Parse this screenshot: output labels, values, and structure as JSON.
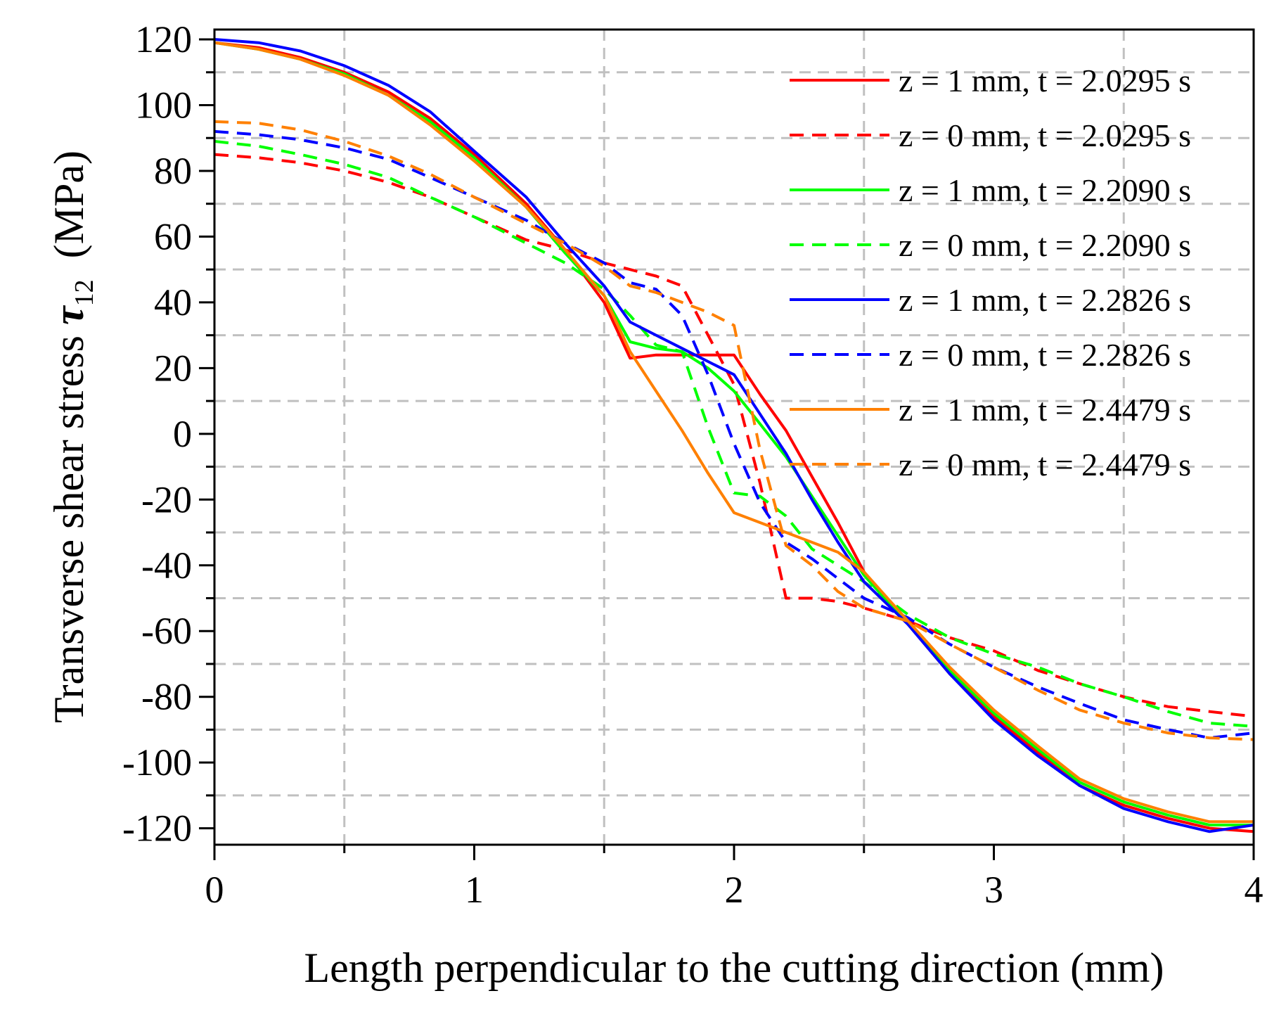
{
  "chart_data": {
    "type": "line",
    "title": "",
    "xlabel": "Length perpendicular to the cutting direction (mm)",
    "ylabel_prefix": "Transverse shear stress ",
    "ylabel_symbol": "τ",
    "ylabel_subscript": "12",
    "ylabel_unit": "(MPa)",
    "xlim": [
      0,
      4
    ],
    "ylim": [
      -125,
      123
    ],
    "x_ticks": [
      "0",
      "1",
      "2",
      "3",
      "4"
    ],
    "y_ticks": [
      "120",
      "100",
      "80",
      "60",
      "40",
      "20",
      "0",
      "-20",
      "-40",
      "-60",
      "-80",
      "-100",
      "-120"
    ],
    "grid": true,
    "legend_position": "top-right",
    "series": [
      {
        "name": "z = 1 mm, t = 2.0295 s",
        "color": "#ff0000",
        "dash": "solid",
        "points": [
          [
            0,
            119
          ],
          [
            0.17,
            117.5
          ],
          [
            0.33,
            114.5
          ],
          [
            0.5,
            110
          ],
          [
            0.67,
            104
          ],
          [
            0.83,
            96
          ],
          [
            1,
            85
          ],
          [
            1.2,
            70
          ],
          [
            1.35,
            56
          ],
          [
            1.5,
            40
          ],
          [
            1.6,
            23
          ],
          [
            1.7,
            24
          ],
          [
            1.8,
            24
          ],
          [
            1.9,
            24
          ],
          [
            2.0,
            24
          ],
          [
            2.1,
            12
          ],
          [
            2.2,
            1
          ],
          [
            2.3,
            -13
          ],
          [
            2.4,
            -27
          ],
          [
            2.5,
            -42
          ],
          [
            2.67,
            -58
          ],
          [
            2.83,
            -73
          ],
          [
            3.0,
            -86
          ],
          [
            3.17,
            -97
          ],
          [
            3.33,
            -107
          ],
          [
            3.5,
            -113
          ],
          [
            3.67,
            -117
          ],
          [
            3.83,
            -120
          ],
          [
            4.0,
            -121
          ]
        ]
      },
      {
        "name": "z = 0 mm, t = 2.0295 s",
        "color": "#ff0000",
        "dash": "dashed",
        "points": [
          [
            0,
            85
          ],
          [
            0.17,
            84
          ],
          [
            0.33,
            82.5
          ],
          [
            0.5,
            80
          ],
          [
            0.67,
            76.5
          ],
          [
            0.83,
            72
          ],
          [
            1,
            66
          ],
          [
            1.2,
            59
          ],
          [
            1.35,
            56
          ],
          [
            1.5,
            52
          ],
          [
            1.6,
            50
          ],
          [
            1.7,
            48
          ],
          [
            1.8,
            45
          ],
          [
            1.9,
            30
          ],
          [
            2.0,
            15
          ],
          [
            2.1,
            -15
          ],
          [
            2.2,
            -50
          ],
          [
            2.3,
            -50
          ],
          [
            2.4,
            -51
          ],
          [
            2.5,
            -53
          ],
          [
            2.67,
            -57
          ],
          [
            2.83,
            -62
          ],
          [
            3.0,
            -66
          ],
          [
            3.17,
            -72
          ],
          [
            3.33,
            -76
          ],
          [
            3.5,
            -80
          ],
          [
            3.67,
            -83
          ],
          [
            3.83,
            -84.5
          ],
          [
            4.0,
            -86
          ]
        ]
      },
      {
        "name": "z = 1 mm, t = 2.2090 s",
        "color": "#00ff00",
        "dash": "solid",
        "points": [
          [
            0,
            119
          ],
          [
            0.17,
            117
          ],
          [
            0.33,
            114
          ],
          [
            0.5,
            109.5
          ],
          [
            0.67,
            103
          ],
          [
            0.83,
            95
          ],
          [
            1,
            84
          ],
          [
            1.2,
            69
          ],
          [
            1.35,
            55
          ],
          [
            1.5,
            42
          ],
          [
            1.6,
            28
          ],
          [
            1.7,
            26
          ],
          [
            1.8,
            25
          ],
          [
            1.9,
            20
          ],
          [
            2.0,
            13
          ],
          [
            2.1,
            3
          ],
          [
            2.2,
            -7
          ],
          [
            2.3,
            -19
          ],
          [
            2.4,
            -31
          ],
          [
            2.5,
            -43
          ],
          [
            2.67,
            -58
          ],
          [
            2.83,
            -72
          ],
          [
            3.0,
            -85
          ],
          [
            3.17,
            -96
          ],
          [
            3.33,
            -106
          ],
          [
            3.5,
            -112
          ],
          [
            3.67,
            -116
          ],
          [
            3.83,
            -119
          ],
          [
            4.0,
            -119
          ]
        ]
      },
      {
        "name": "z = 0 mm, t = 2.2090 s",
        "color": "#00ff00",
        "dash": "dashed",
        "points": [
          [
            0,
            89
          ],
          [
            0.17,
            87.5
          ],
          [
            0.33,
            85
          ],
          [
            0.5,
            82
          ],
          [
            0.67,
            78
          ],
          [
            0.83,
            72
          ],
          [
            1,
            66
          ],
          [
            1.2,
            58
          ],
          [
            1.35,
            52
          ],
          [
            1.5,
            44
          ],
          [
            1.6,
            36
          ],
          [
            1.7,
            27
          ],
          [
            1.8,
            25
          ],
          [
            1.9,
            2
          ],
          [
            2.0,
            -18
          ],
          [
            2.1,
            -19
          ],
          [
            2.2,
            -25
          ],
          [
            2.3,
            -35
          ],
          [
            2.4,
            -40
          ],
          [
            2.5,
            -45
          ],
          [
            2.67,
            -55
          ],
          [
            2.83,
            -62
          ],
          [
            3.0,
            -67
          ],
          [
            3.17,
            -71
          ],
          [
            3.33,
            -76
          ],
          [
            3.5,
            -80
          ],
          [
            3.67,
            -84.5
          ],
          [
            3.83,
            -88
          ],
          [
            4.0,
            -89
          ]
        ]
      },
      {
        "name": "z = 1 mm, t = 2.2826 s",
        "color": "#0000ff",
        "dash": "solid",
        "points": [
          [
            0,
            120
          ],
          [
            0.17,
            119
          ],
          [
            0.33,
            116.5
          ],
          [
            0.5,
            112
          ],
          [
            0.67,
            106
          ],
          [
            0.83,
            98
          ],
          [
            1,
            86
          ],
          [
            1.2,
            72
          ],
          [
            1.35,
            58
          ],
          [
            1.5,
            45
          ],
          [
            1.6,
            34
          ],
          [
            1.7,
            30
          ],
          [
            1.8,
            26
          ],
          [
            1.9,
            22
          ],
          [
            2.0,
            18
          ],
          [
            2.1,
            6
          ],
          [
            2.2,
            -6
          ],
          [
            2.3,
            -20
          ],
          [
            2.4,
            -33
          ],
          [
            2.5,
            -45
          ],
          [
            2.67,
            -58
          ],
          [
            2.83,
            -73
          ],
          [
            3.0,
            -87
          ],
          [
            3.17,
            -98
          ],
          [
            3.33,
            -107
          ],
          [
            3.5,
            -114
          ],
          [
            3.67,
            -118
          ],
          [
            3.83,
            -121
          ],
          [
            4.0,
            -119
          ]
        ]
      },
      {
        "name": "z = 0 mm, t = 2.2826 s",
        "color": "#0000ff",
        "dash": "dashed",
        "points": [
          [
            0,
            92
          ],
          [
            0.17,
            91
          ],
          [
            0.33,
            89.5
          ],
          [
            0.5,
            87
          ],
          [
            0.67,
            83.5
          ],
          [
            0.83,
            78
          ],
          [
            1,
            72
          ],
          [
            1.2,
            65
          ],
          [
            1.35,
            58
          ],
          [
            1.5,
            52
          ],
          [
            1.6,
            46
          ],
          [
            1.7,
            44
          ],
          [
            1.8,
            36
          ],
          [
            1.9,
            18
          ],
          [
            2.0,
            -3
          ],
          [
            2.1,
            -21
          ],
          [
            2.2,
            -33
          ],
          [
            2.3,
            -38
          ],
          [
            2.4,
            -44
          ],
          [
            2.5,
            -50
          ],
          [
            2.67,
            -56
          ],
          [
            2.83,
            -64
          ],
          [
            3.0,
            -71
          ],
          [
            3.17,
            -77
          ],
          [
            3.33,
            -82
          ],
          [
            3.5,
            -87
          ],
          [
            3.67,
            -90
          ],
          [
            3.83,
            -92.5
          ],
          [
            4.0,
            -91
          ]
        ]
      },
      {
        "name": "z = 1 mm, t = 2.4479 s",
        "color": "#ff8000",
        "dash": "solid",
        "points": [
          [
            0,
            119
          ],
          [
            0.17,
            117
          ],
          [
            0.33,
            114
          ],
          [
            0.5,
            109
          ],
          [
            0.67,
            103
          ],
          [
            0.83,
            94
          ],
          [
            1,
            83
          ],
          [
            1.2,
            69
          ],
          [
            1.35,
            56
          ],
          [
            1.5,
            42
          ],
          [
            1.6,
            25
          ],
          [
            1.7,
            13
          ],
          [
            1.8,
            1
          ],
          [
            1.9,
            -12
          ],
          [
            2.0,
            -24
          ],
          [
            2.1,
            -27
          ],
          [
            2.2,
            -30
          ],
          [
            2.3,
            -33
          ],
          [
            2.4,
            -36
          ],
          [
            2.5,
            -42
          ],
          [
            2.67,
            -57
          ],
          [
            2.83,
            -71
          ],
          [
            3.0,
            -84
          ],
          [
            3.17,
            -95
          ],
          [
            3.33,
            -105
          ],
          [
            3.5,
            -111
          ],
          [
            3.67,
            -115
          ],
          [
            3.83,
            -118
          ],
          [
            4.0,
            -118
          ]
        ]
      },
      {
        "name": "z = 0 mm, t = 2.4479 s",
        "color": "#ff8000",
        "dash": "dashed",
        "points": [
          [
            0,
            95
          ],
          [
            0.17,
            94.5
          ],
          [
            0.33,
            92.5
          ],
          [
            0.5,
            89
          ],
          [
            0.67,
            84.5
          ],
          [
            0.83,
            79
          ],
          [
            1,
            72
          ],
          [
            1.2,
            64
          ],
          [
            1.35,
            58
          ],
          [
            1.5,
            51
          ],
          [
            1.6,
            45
          ],
          [
            1.7,
            43
          ],
          [
            1.8,
            40
          ],
          [
            1.9,
            37
          ],
          [
            2.0,
            33
          ],
          [
            2.1,
            -5
          ],
          [
            2.2,
            -34
          ],
          [
            2.3,
            -40
          ],
          [
            2.4,
            -48
          ],
          [
            2.5,
            -53
          ],
          [
            2.67,
            -57
          ],
          [
            2.83,
            -64
          ],
          [
            3.0,
            -71
          ],
          [
            3.17,
            -78
          ],
          [
            3.33,
            -84
          ],
          [
            3.5,
            -88
          ],
          [
            3.67,
            -91
          ],
          [
            3.83,
            -92.5
          ],
          [
            4.0,
            -93
          ]
        ]
      }
    ]
  }
}
